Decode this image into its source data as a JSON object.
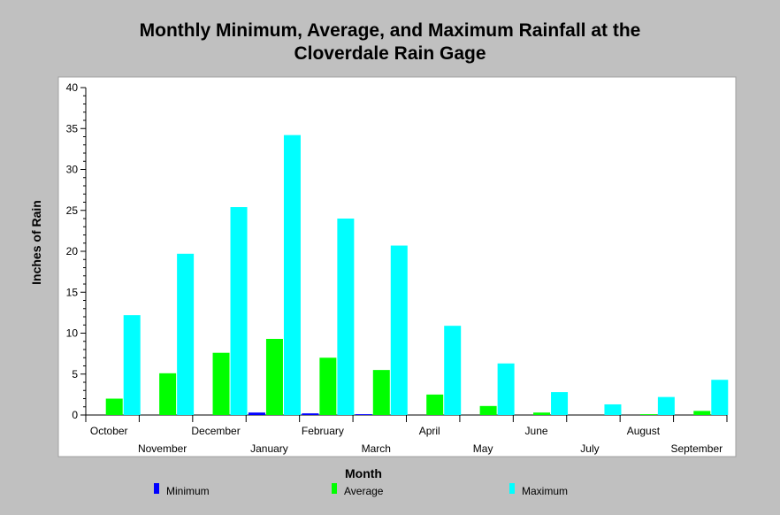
{
  "chart_data": {
    "type": "bar",
    "title_line1": "Monthly Minimum, Average, and Maximum Rainfall at the",
    "title_line2": "Cloverdale Rain Gage",
    "xlabel": "Month",
    "ylabel": "Inches of Rain",
    "ylim": [
      0,
      40
    ],
    "yticks": [
      0,
      5,
      10,
      15,
      20,
      25,
      30,
      35,
      40
    ],
    "categories": [
      "October",
      "November",
      "December",
      "January",
      "February",
      "March",
      "April",
      "May",
      "June",
      "July",
      "August",
      "September"
    ],
    "series": [
      {
        "name": "Minimum",
        "color": "#0000ff",
        "values": [
          0,
          0,
          0,
          0.3,
          0.2,
          0.1,
          0,
          0,
          0,
          0,
          0,
          0
        ]
      },
      {
        "name": "Average",
        "color": "#00ff00",
        "values": [
          2.0,
          5.1,
          7.6,
          9.3,
          7.0,
          5.5,
          2.5,
          1.1,
          0.3,
          0.0,
          0.1,
          0.5
        ]
      },
      {
        "name": "Maximum",
        "color": "#00ffff",
        "values": [
          12.2,
          19.7,
          25.4,
          34.2,
          24.0,
          20.7,
          10.9,
          6.3,
          2.8,
          1.3,
          2.2,
          4.3
        ]
      }
    ],
    "legend_position": "bottom",
    "grid": false
  }
}
